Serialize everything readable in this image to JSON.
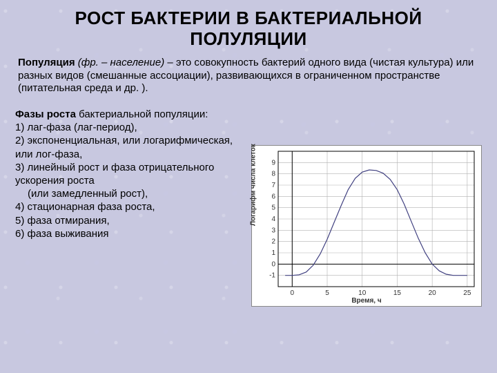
{
  "title": "РОСТ БАКТЕРИИ В БАКТЕРИАЛЬНОЙ ПОЛУЛЯЦИИ",
  "definition": {
    "term": "Популяция",
    "etym": "(фр. – население)",
    "rest": " – это совокупность бактерий одного вида (чистая культура) или разных видов (смешанные ассоциации), развивающихся в ограниченном пространстве (питательная среда и др. )."
  },
  "phases": {
    "lead": "Фазы роста",
    "lead_rest": " бактериальной популяции:",
    "items": [
      "1) лаг-фаза (лаг-период),",
      "2) экспоненциальная, или логарифмическая, или лог-фаза,",
      "3) линейный рост и фаза отрицательного ускорения роста",
      "    (или замедленный рост),",
      "4) стационарная фаза роста,",
      "5) фаза отмирания,",
      "6) фаза выживания"
    ]
  },
  "chart": {
    "type": "line",
    "xlabel": "Время, ч",
    "ylabel": "Логарифм числа клеток",
    "xlim": [
      -2,
      26
    ],
    "ylim": [
      -2,
      10
    ],
    "xticks": [
      0,
      5,
      10,
      15,
      20,
      25
    ],
    "yticks": [
      -1,
      0,
      1,
      2,
      3,
      4,
      5,
      6,
      7,
      8,
      9
    ],
    "background_color": "#ffffff",
    "grid_color": "#b0b0b0",
    "curve_color": "#404080",
    "axis_color": "#000000",
    "line_width": 1.2,
    "data": [
      [
        -1,
        -1
      ],
      [
        0,
        -1
      ],
      [
        1,
        -0.95
      ],
      [
        2,
        -0.7
      ],
      [
        3,
        -0.1
      ],
      [
        4,
        0.9
      ],
      [
        5,
        2.2
      ],
      [
        6,
        3.7
      ],
      [
        7,
        5.2
      ],
      [
        8,
        6.6
      ],
      [
        9,
        7.6
      ],
      [
        10,
        8.15
      ],
      [
        11,
        8.35
      ],
      [
        12,
        8.3
      ],
      [
        13,
        8.05
      ],
      [
        14,
        7.5
      ],
      [
        15,
        6.6
      ],
      [
        16,
        5.3
      ],
      [
        17,
        3.8
      ],
      [
        18,
        2.3
      ],
      [
        19,
        1.0
      ],
      [
        20,
        0.0
      ],
      [
        21,
        -0.6
      ],
      [
        22,
        -0.9
      ],
      [
        23,
        -1
      ],
      [
        24,
        -1
      ],
      [
        25,
        -1
      ]
    ],
    "label_fontsize": 10,
    "tick_fontsize": 10
  }
}
